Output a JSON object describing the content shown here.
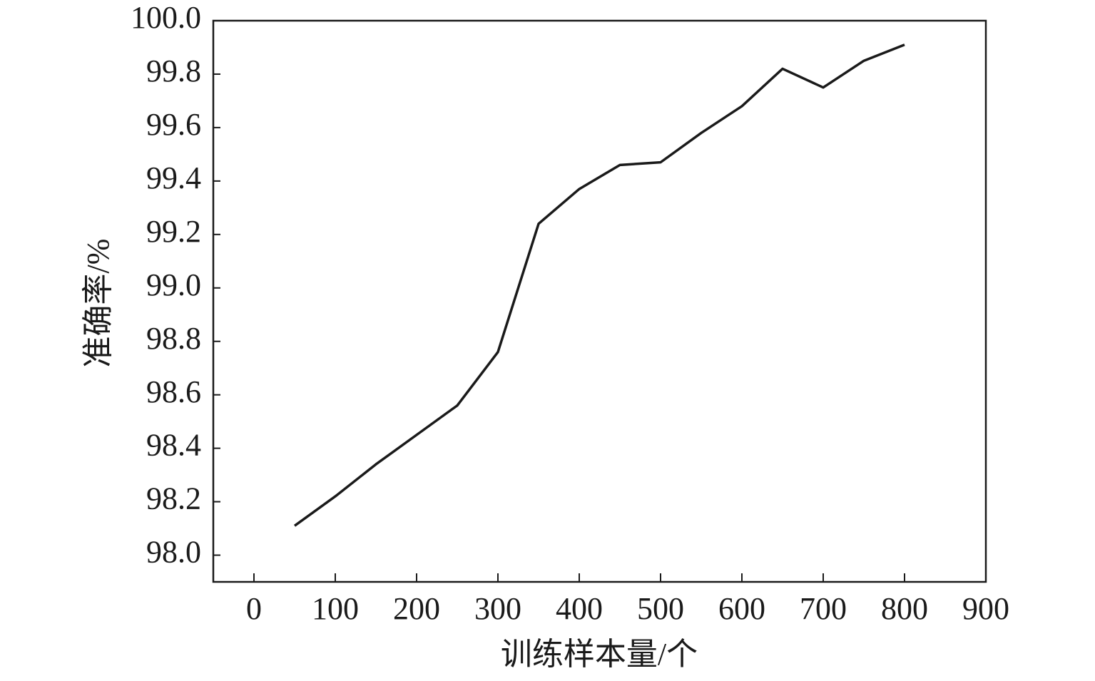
{
  "chart_data": {
    "type": "line",
    "x_label": "训练样本量/个",
    "y_label": "准确率/%",
    "x": [
      50,
      100,
      150,
      200,
      250,
      300,
      350,
      400,
      450,
      500,
      550,
      600,
      650,
      700,
      750,
      800
    ],
    "series": [
      {
        "color": "#1a1a1a",
        "values": [
          98.11,
          98.22,
          98.34,
          98.45,
          98.56,
          98.76,
          99.24,
          99.37,
          99.46,
          99.47,
          99.58,
          99.68,
          99.82,
          99.75,
          99.85,
          99.91
        ]
      }
    ],
    "xlim": [
      -50,
      900
    ],
    "xticks": [
      0,
      100,
      200,
      300,
      400,
      500,
      600,
      700,
      800,
      900
    ],
    "ylim": [
      97.9,
      100.0
    ],
    "yticks": [
      {
        "value": 98,
        "label": "98.0"
      },
      98.2,
      98.4,
      98.6,
      98.8,
      {
        "value": 99,
        "label": "99.0"
      },
      99.2,
      99.4,
      99.6,
      99.8,
      {
        "value": 100,
        "label": "100.0"
      }
    ],
    "grid": false
  }
}
